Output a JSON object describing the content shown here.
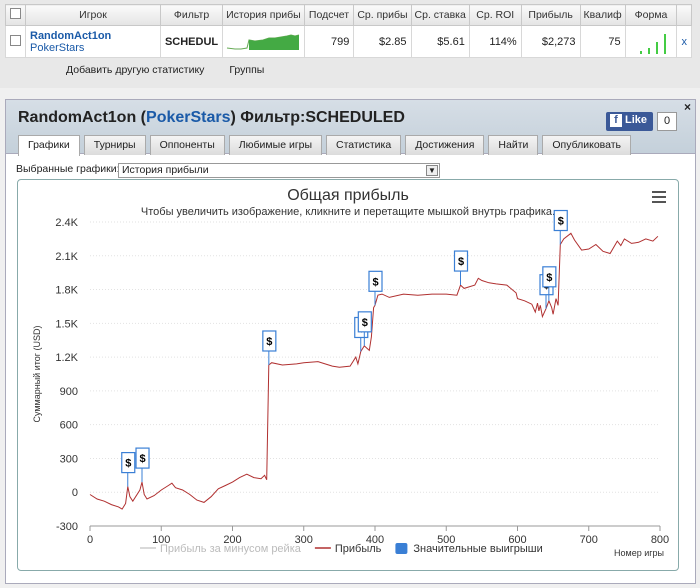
{
  "stats_table": {
    "headers": [
      "Игрок",
      "Фильтр",
      "История прибы",
      "Подсчет",
      "Ср. прибы",
      "Ср. ставка",
      "Ср. ROI",
      "Прибыль",
      "Квалиф",
      "Форма"
    ],
    "row": {
      "player": "RandomAct1on",
      "site": "PokerStars",
      "filter": "SCHEDUL",
      "count": "799",
      "avg_profit": "$2.85",
      "avg_stake": "$5.61",
      "avg_roi": "114%",
      "profit": "$2,273",
      "qualif": "75",
      "remove": "x"
    }
  },
  "sub_links": {
    "add_stat": "Добавить другую статистику",
    "groups": "Группы"
  },
  "main": {
    "title_player": "RandomAct1on",
    "title_site": "PokerStars",
    "title_filter_label": "Фильтр:",
    "title_filter": "SCHEDULED",
    "close": "×",
    "like_label": "Like",
    "like_count": "0"
  },
  "tabs": [
    {
      "label": "Графики",
      "active": true
    },
    {
      "label": "Турниры"
    },
    {
      "label": "Оппоненты"
    },
    {
      "label": "Любимые игры"
    },
    {
      "label": "Статистика"
    },
    {
      "label": "Достижения"
    },
    {
      "label": "Найти"
    },
    {
      "label": "Опубликовать"
    }
  ],
  "chart_select": {
    "label": "Выбранные графики:",
    "value": "История прибыли"
  },
  "chart_data": {
    "type": "line",
    "title": "Общая прибыль",
    "subtitle": "Чтобы увеличить изображение, кликните и перетащите мышкой внутрь графика.",
    "xlabel": "Номер игры",
    "ylabel": "Суммарный итог (USD)",
    "xlim": [
      0,
      800
    ],
    "ylim": [
      -300,
      2400
    ],
    "x_ticks": [
      0,
      100,
      200,
      300,
      400,
      500,
      600,
      700,
      800
    ],
    "y_ticks": [
      -300,
      0,
      300,
      600,
      900,
      1200,
      1500,
      1800,
      2100,
      2400
    ],
    "y_tick_labels": [
      "-300",
      "0",
      "300",
      "600",
      "900",
      "1.2K",
      "1.5K",
      "1.8K",
      "2.1K",
      "2.4K"
    ],
    "grid": true,
    "legend": [
      {
        "name": "Прибыль за минусом рейка",
        "color": "#cccccc"
      },
      {
        "name": "Прибыль",
        "color": "#b03030"
      },
      {
        "name": "Значительные выигрыши",
        "color": "#3a7fd5"
      }
    ],
    "series": [
      {
        "name": "Прибыль",
        "color": "#b03030",
        "points": [
          [
            0,
            -20
          ],
          [
            10,
            -60
          ],
          [
            20,
            -80
          ],
          [
            30,
            -110
          ],
          [
            40,
            -130
          ],
          [
            45,
            -150
          ],
          [
            50,
            -100
          ],
          [
            53,
            50
          ],
          [
            56,
            -40
          ],
          [
            60,
            -80
          ],
          [
            70,
            20
          ],
          [
            73,
            90
          ],
          [
            76,
            -20
          ],
          [
            80,
            -60
          ],
          [
            90,
            -30
          ],
          [
            100,
            20
          ],
          [
            110,
            60
          ],
          [
            115,
            80
          ],
          [
            120,
            40
          ],
          [
            130,
            20
          ],
          [
            140,
            -20
          ],
          [
            150,
            -70
          ],
          [
            160,
            -90
          ],
          [
            170,
            -40
          ],
          [
            180,
            30
          ],
          [
            190,
            60
          ],
          [
            200,
            90
          ],
          [
            210,
            130
          ],
          [
            220,
            160
          ],
          [
            230,
            130
          ],
          [
            240,
            120
          ],
          [
            245,
            150
          ],
          [
            248,
            110
          ],
          [
            251,
            1130
          ],
          [
            255,
            1150
          ],
          [
            270,
            1130
          ],
          [
            290,
            1140
          ],
          [
            300,
            1150
          ],
          [
            320,
            1160
          ],
          [
            330,
            1140
          ],
          [
            340,
            1120
          ],
          [
            350,
            1110
          ],
          [
            365,
            1120
          ],
          [
            373,
            1200
          ],
          [
            376,
            1140
          ],
          [
            380,
            1250
          ],
          [
            385,
            1300
          ],
          [
            392,
            1260
          ],
          [
            395,
            1380
          ],
          [
            398,
            1640
          ],
          [
            400,
            1660
          ],
          [
            404,
            1750
          ],
          [
            410,
            1760
          ],
          [
            420,
            1730
          ],
          [
            440,
            1760
          ],
          [
            460,
            1750
          ],
          [
            480,
            1760
          ],
          [
            500,
            1760
          ],
          [
            515,
            1750
          ],
          [
            520,
            1840
          ],
          [
            525,
            1810
          ],
          [
            540,
            1840
          ],
          [
            545,
            1900
          ],
          [
            550,
            1880
          ],
          [
            560,
            1860
          ],
          [
            570,
            1850
          ],
          [
            585,
            1840
          ],
          [
            598,
            1770
          ],
          [
            600,
            1720
          ],
          [
            610,
            1700
          ],
          [
            620,
            1670
          ],
          [
            625,
            1600
          ],
          [
            628,
            1680
          ],
          [
            630,
            1610
          ],
          [
            632,
            1660
          ],
          [
            635,
            1560
          ],
          [
            640,
            1630
          ],
          [
            644,
            1700
          ],
          [
            648,
            1640
          ],
          [
            650,
            1580
          ],
          [
            654,
            1720
          ],
          [
            657,
            1660
          ],
          [
            660,
            2200
          ],
          [
            665,
            2250
          ],
          [
            675,
            2300
          ],
          [
            680,
            2240
          ],
          [
            690,
            2150
          ],
          [
            700,
            2160
          ],
          [
            710,
            2200
          ],
          [
            720,
            2140
          ],
          [
            730,
            2120
          ],
          [
            740,
            2230
          ],
          [
            745,
            2190
          ],
          [
            750,
            2250
          ],
          [
            760,
            2210
          ],
          [
            770,
            2220
          ],
          [
            780,
            2250
          ],
          [
            790,
            2230
          ],
          [
            797,
            2273
          ]
        ]
      }
    ],
    "big_wins": [
      [
        53,
        50
      ],
      [
        73,
        90
      ],
      [
        251,
        1130
      ],
      [
        380,
        1250
      ],
      [
        385,
        1300
      ],
      [
        400,
        1660
      ],
      [
        520,
        1840
      ],
      [
        640,
        1630
      ],
      [
        644,
        1700
      ],
      [
        660,
        2200
      ]
    ],
    "big_win_label": "$"
  }
}
